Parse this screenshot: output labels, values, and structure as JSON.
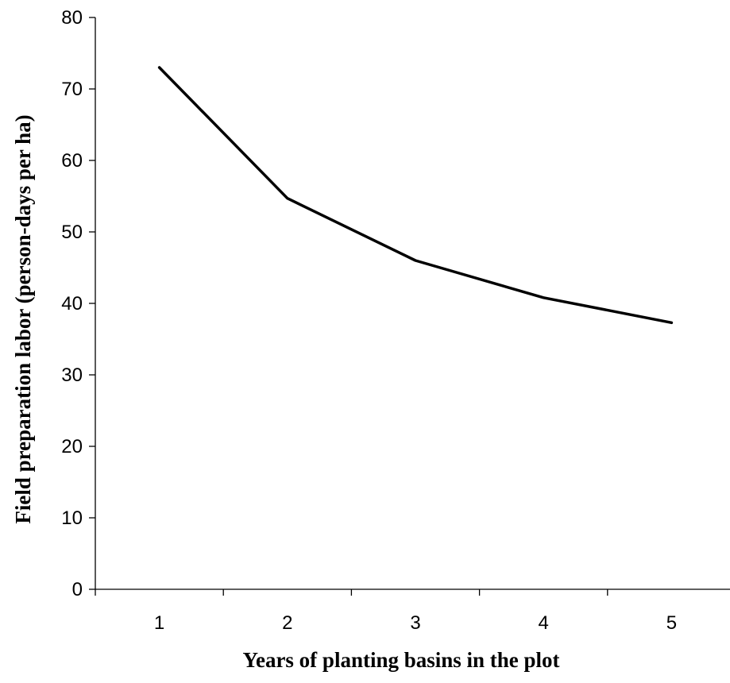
{
  "chart_data": {
    "type": "line",
    "title": "",
    "xlabel": "Years of planting basins in the plot",
    "ylabel": "Field preparation labor (person-days per ha)",
    "categories": [
      "1",
      "2",
      "3",
      "4",
      "5"
    ],
    "series": [
      {
        "values": [
          73,
          54.7,
          46,
          40.8,
          37.3
        ],
        "color": "#000000"
      }
    ],
    "ylim": [
      0,
      80
    ],
    "yticks": [
      0,
      10,
      20,
      30,
      40,
      50,
      60,
      70,
      80
    ],
    "grid": false,
    "legend": "none"
  }
}
